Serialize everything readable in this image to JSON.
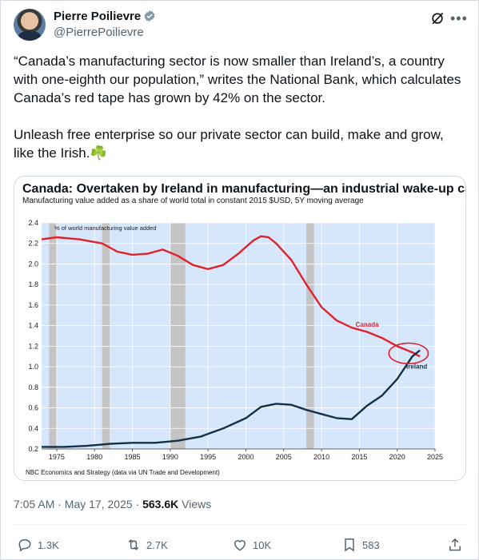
{
  "author": {
    "name": "Pierre Poilievre",
    "handle": "@PierrePoilievre",
    "avatar_icon": "avatar",
    "verified_icon": "verified-badge-icon"
  },
  "tweet": {
    "paragraph1": "“Canada’s manufacturing sector is now smaller than Ireland’s, a country with one-eighth our population,” writes the National Bank, which calculates Canada’s red tape has grown by 42% on the sector.",
    "paragraph2": "Unleash free enterprise so our private sector can build, make and grow, like the Irish.",
    "emoji": "☘️"
  },
  "chart_data": {
    "type": "line",
    "title": "Canada: Overtaken by Ireland in manufacturing—an industrial wake-up call",
    "subtitle": "Manufacturing value added as a share of world total in constant 2015 $USD, 5Y moving average",
    "inner_label": "% of world manufacturing value added",
    "source": "NBC Economics and Strategy (data via UN Trade and Development)",
    "xlim": [
      1973,
      2025
    ],
    "ylim": [
      0.2,
      2.4
    ],
    "x_ticks": [
      "1975",
      "1980",
      "1985",
      "1990",
      "1995",
      "2000",
      "2005",
      "2010",
      "2015",
      "2020",
      "2025"
    ],
    "y_ticks": [
      "0.2",
      "0.4",
      "0.6",
      "0.8",
      "1.0",
      "1.2",
      "1.4",
      "1.6",
      "1.8",
      "2.0",
      "2.2",
      "2.4"
    ],
    "recession_bands": [
      [
        1974,
        1975
      ],
      [
        1981,
        1982
      ],
      [
        1990,
        1992
      ],
      [
        2008,
        2009
      ]
    ],
    "series": [
      {
        "name": "Canada",
        "color": "#e0202a",
        "x": [
          1973,
          1975,
          1978,
          1981,
          1983,
          1985,
          1987,
          1989,
          1991,
          1993,
          1995,
          1997,
          1999,
          2001,
          2002,
          2003,
          2004,
          2006,
          2008,
          2010,
          2012,
          2014,
          2016,
          2018,
          2020,
          2022,
          2023
        ],
        "y": [
          2.24,
          2.26,
          2.24,
          2.2,
          2.12,
          2.09,
          2.1,
          2.14,
          2.08,
          1.99,
          1.95,
          1.99,
          2.1,
          2.23,
          2.27,
          2.26,
          2.2,
          2.04,
          1.8,
          1.58,
          1.45,
          1.38,
          1.34,
          1.28,
          1.2,
          1.14,
          1.1
        ]
      },
      {
        "name": "Ireland",
        "color": "#12304a",
        "x": [
          1973,
          1976,
          1979,
          1982,
          1985,
          1988,
          1991,
          1994,
          1997,
          2000,
          2002,
          2004,
          2006,
          2008,
          2010,
          2012,
          2014,
          2016,
          2018,
          2020,
          2022,
          2023
        ],
        "y": [
          0.22,
          0.22,
          0.23,
          0.25,
          0.26,
          0.26,
          0.28,
          0.32,
          0.4,
          0.5,
          0.61,
          0.64,
          0.63,
          0.58,
          0.54,
          0.5,
          0.49,
          0.62,
          0.72,
          0.88,
          1.1,
          1.16
        ]
      }
    ],
    "annotation_circle": {
      "cx": 2021.5,
      "cy": 1.13,
      "rx": 2.6,
      "ry": 0.1,
      "color": "#e0202a"
    }
  },
  "meta": {
    "time": "7:05 AM · May 17, 2025 ·",
    "views_count": "563.6K",
    "views_label": "Views"
  },
  "actions": {
    "replies": "1.3K",
    "reposts": "2.7K",
    "likes": "10K",
    "bookmarks": "583"
  }
}
